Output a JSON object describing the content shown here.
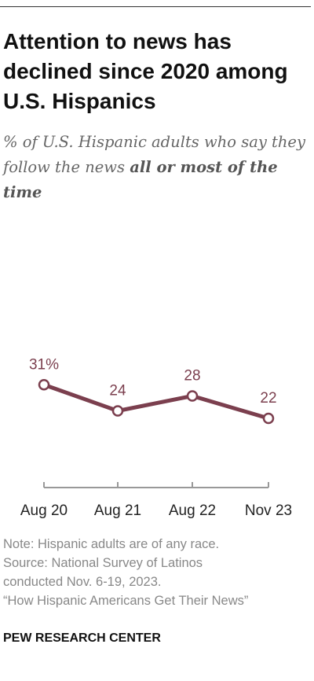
{
  "title": "Attention to news has declined since 2020 among U.S. Hispanics",
  "subtitle": {
    "prefix": "% of U.S. Hispanic adults who say they follow the news ",
    "emphasis": "all or most of the time"
  },
  "colors": {
    "line": "#7b3f4e",
    "label": "#7b3f4e",
    "axis": "#999999"
  },
  "chart_data": {
    "type": "line",
    "title": "Attention to news has declined since 2020 among U.S. Hispanics",
    "categories": [
      "Aug 20",
      "Aug 21",
      "Aug 22",
      "Nov 23"
    ],
    "series": [
      {
        "values": [
          31,
          24,
          28,
          22
        ]
      }
    ],
    "data_labels": [
      "31%",
      "24",
      "28",
      "22"
    ],
    "xlabel": "",
    "ylabel": "",
    "ylim": [
      0,
      100
    ],
    "grid": false,
    "legend": "none"
  },
  "notes": {
    "note": "Note: Hispanic adults are of any race.",
    "source_1": "Source: National Survey of Latinos",
    "source_2": "conducted Nov. 6-19, 2023.",
    "report": "“How Hispanic Americans Get Their News”"
  },
  "footer": "PEW RESEARCH CENTER"
}
